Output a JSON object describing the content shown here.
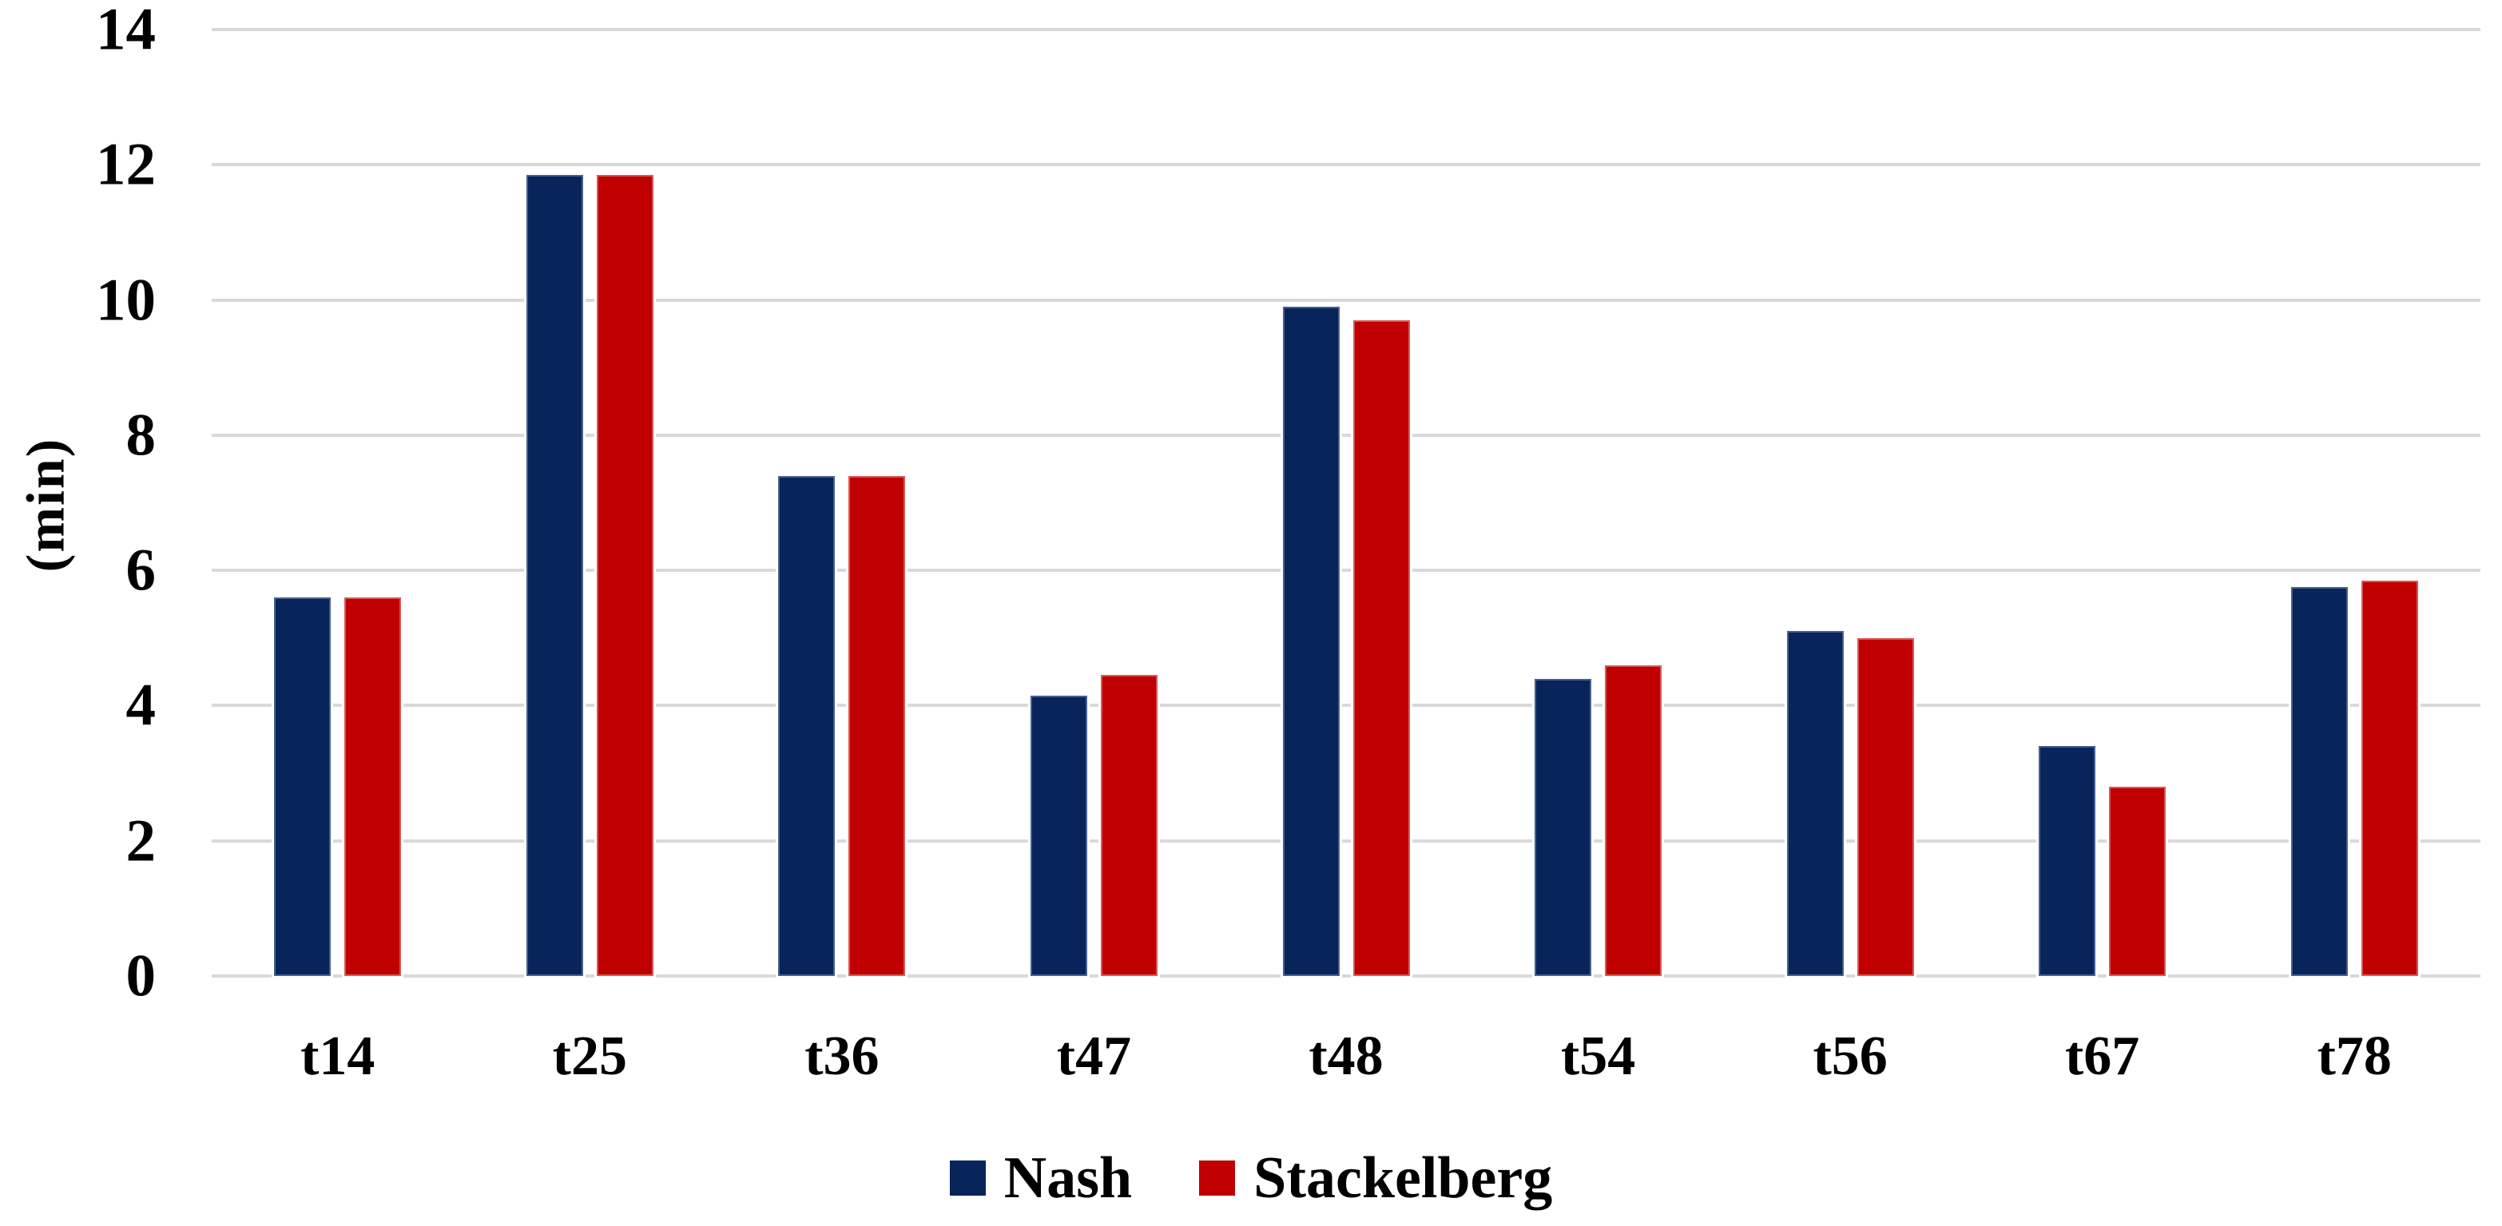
{
  "chart_data": {
    "type": "bar",
    "title": "",
    "xlabel": "",
    "ylabel": "(min)",
    "categories": [
      "t14",
      "t25",
      "t36",
      "t47",
      "t48",
      "t54",
      "t56",
      "t67",
      "t78"
    ],
    "series": [
      {
        "name": "Nash",
        "color": "#08255b",
        "values": [
          5.6,
          11.85,
          7.4,
          4.15,
          9.9,
          4.4,
          5.1,
          3.4,
          5.75
        ]
      },
      {
        "name": "Stackelberg",
        "color": "#c00000",
        "values": [
          5.6,
          11.85,
          7.4,
          4.45,
          9.7,
          4.6,
          5.0,
          2.8,
          5.85
        ]
      }
    ],
    "ylim": [
      0,
      14
    ],
    "ytick_step": 2,
    "yticks": [
      "0",
      "2",
      "4",
      "6",
      "8",
      "10",
      "12",
      "14"
    ],
    "grid": true,
    "gridline_color": "#d9d9d9",
    "legend_position": "bottom",
    "background": "#ffffff",
    "text_color": "#000000"
  }
}
